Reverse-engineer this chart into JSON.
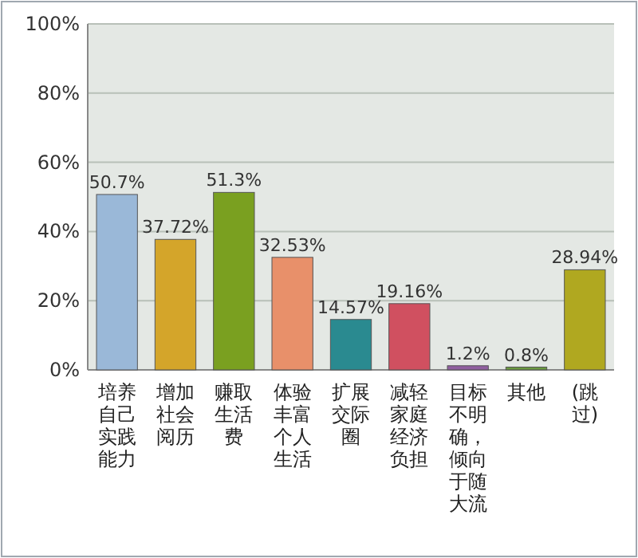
{
  "chart_data": {
    "type": "bar",
    "categories": [
      "培养自己实践能力",
      "增加社会阅历",
      "赚取生活费",
      "体验丰富个人生活",
      "扩展交际圈",
      "减轻家庭经济负担",
      "目标不明确，倾向于随大流",
      "其他",
      "(跳过)"
    ],
    "values": [
      50.7,
      37.72,
      51.3,
      32.53,
      14.57,
      19.16,
      1.2,
      0.8,
      28.94
    ],
    "value_labels": [
      "50.7%",
      "37.72%",
      "51.3%",
      "32.53%",
      "14.57%",
      "19.16%",
      "1.2%",
      "0.8%",
      "28.94%"
    ],
    "colors": [
      "#9ab8d8",
      "#d4a52a",
      "#7aa020",
      "#e8906a",
      "#2a8a90",
      "#d05060",
      "#9060a0",
      "#6a9a40",
      "#b0a820"
    ],
    "ylim": [
      0,
      100
    ],
    "yticks": [
      {
        "value": 0,
        "label": "0%"
      },
      {
        "value": 20,
        "label": "20%"
      },
      {
        "value": 40,
        "label": "40%"
      },
      {
        "value": 60,
        "label": "60%"
      },
      {
        "value": 80,
        "label": "80%"
      },
      {
        "value": 100,
        "label": "100%"
      }
    ],
    "grid": true
  }
}
